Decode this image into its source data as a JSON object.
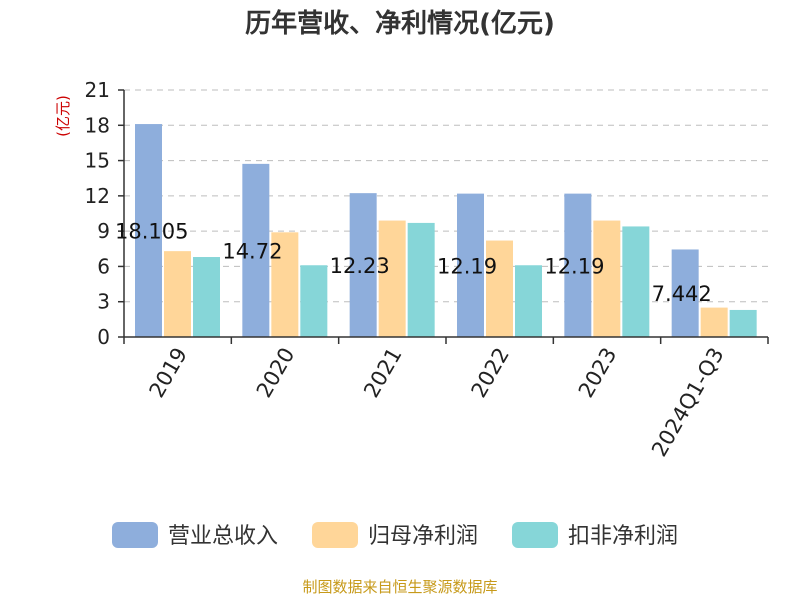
{
  "title": "历年营收、净利情况(亿元)",
  "unit_label": "(亿元)",
  "source": "制图数据来自恒生聚源数据库",
  "colors": {
    "title": "#333333",
    "unit": "#cc0000",
    "source": "#c79a1a",
    "grid": "#bdbdbd",
    "axis": "#333333"
  },
  "chart_data": {
    "type": "bar",
    "title": "历年营收、净利情况(亿元)",
    "ylabel": "(亿元)",
    "xlabel": "",
    "categories": [
      "2019",
      "2020",
      "2021",
      "2022",
      "2023",
      "2024Q1-Q3"
    ],
    "y_ticks": [
      0,
      3,
      6,
      9,
      12,
      15,
      18,
      21
    ],
    "ylim": [
      0,
      21
    ],
    "grid": true,
    "legend_position": "bottom",
    "series": [
      {
        "name": "营业总收入",
        "color": "#8eaedc",
        "values": [
          18.105,
          14.72,
          12.23,
          12.19,
          12.19,
          7.442
        ],
        "labels": [
          "18.105",
          "14.72",
          "12.23",
          "12.19",
          "12.19",
          "7.442"
        ]
      },
      {
        "name": "归母净利润",
        "color": "#ffd699",
        "values": [
          7.3,
          8.9,
          9.9,
          8.2,
          9.9,
          2.5
        ]
      },
      {
        "name": "扣非净利润",
        "color": "#86d6d8",
        "values": [
          6.8,
          6.1,
          9.7,
          6.1,
          9.4,
          2.3
        ]
      }
    ]
  }
}
